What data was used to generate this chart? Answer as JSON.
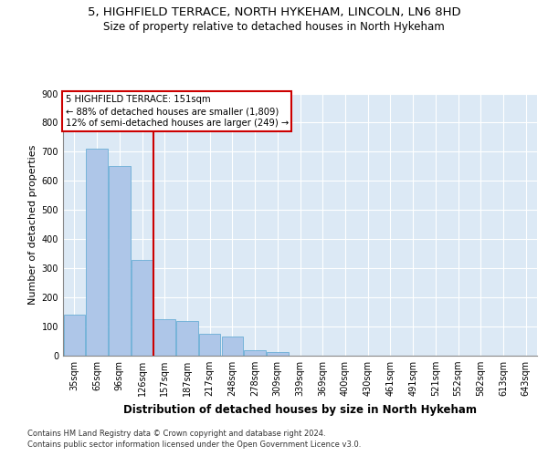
{
  "title1": "5, HIGHFIELD TERRACE, NORTH HYKEHAM, LINCOLN, LN6 8HD",
  "title2": "Size of property relative to detached houses in North Hykeham",
  "xlabel": "Distribution of detached houses by size in North Hykeham",
  "ylabel": "Number of detached properties",
  "footnote1": "Contains HM Land Registry data © Crown copyright and database right 2024.",
  "footnote2": "Contains public sector information licensed under the Open Government Licence v3.0.",
  "categories": [
    "35sqm",
    "65sqm",
    "96sqm",
    "126sqm",
    "157sqm",
    "187sqm",
    "217sqm",
    "248sqm",
    "278sqm",
    "309sqm",
    "339sqm",
    "369sqm",
    "400sqm",
    "430sqm",
    "461sqm",
    "491sqm",
    "521sqm",
    "552sqm",
    "582sqm",
    "613sqm",
    "643sqm"
  ],
  "values": [
    140,
    710,
    650,
    330,
    125,
    120,
    75,
    65,
    18,
    12,
    0,
    0,
    0,
    0,
    0,
    0,
    0,
    0,
    0,
    0,
    0
  ],
  "bar_color": "#aec6e8",
  "bar_edge_color": "#6aaed6",
  "vline_x_index": 4,
  "vline_color": "#cc0000",
  "annotation_line1": "5 HIGHFIELD TERRACE: 151sqm",
  "annotation_line2": "← 88% of detached houses are smaller (1,809)",
  "annotation_line3": "12% of semi-detached houses are larger (249) →",
  "annotation_box_color": "#cc0000",
  "ylim": [
    0,
    900
  ],
  "yticks": [
    0,
    100,
    200,
    300,
    400,
    500,
    600,
    700,
    800,
    900
  ],
  "bg_color": "#dce9f5",
  "title1_fontsize": 9.5,
  "title2_fontsize": 8.5,
  "xlabel_fontsize": 8.5,
  "ylabel_fontsize": 8,
  "tick_fontsize": 7,
  "footnote_fontsize": 6
}
